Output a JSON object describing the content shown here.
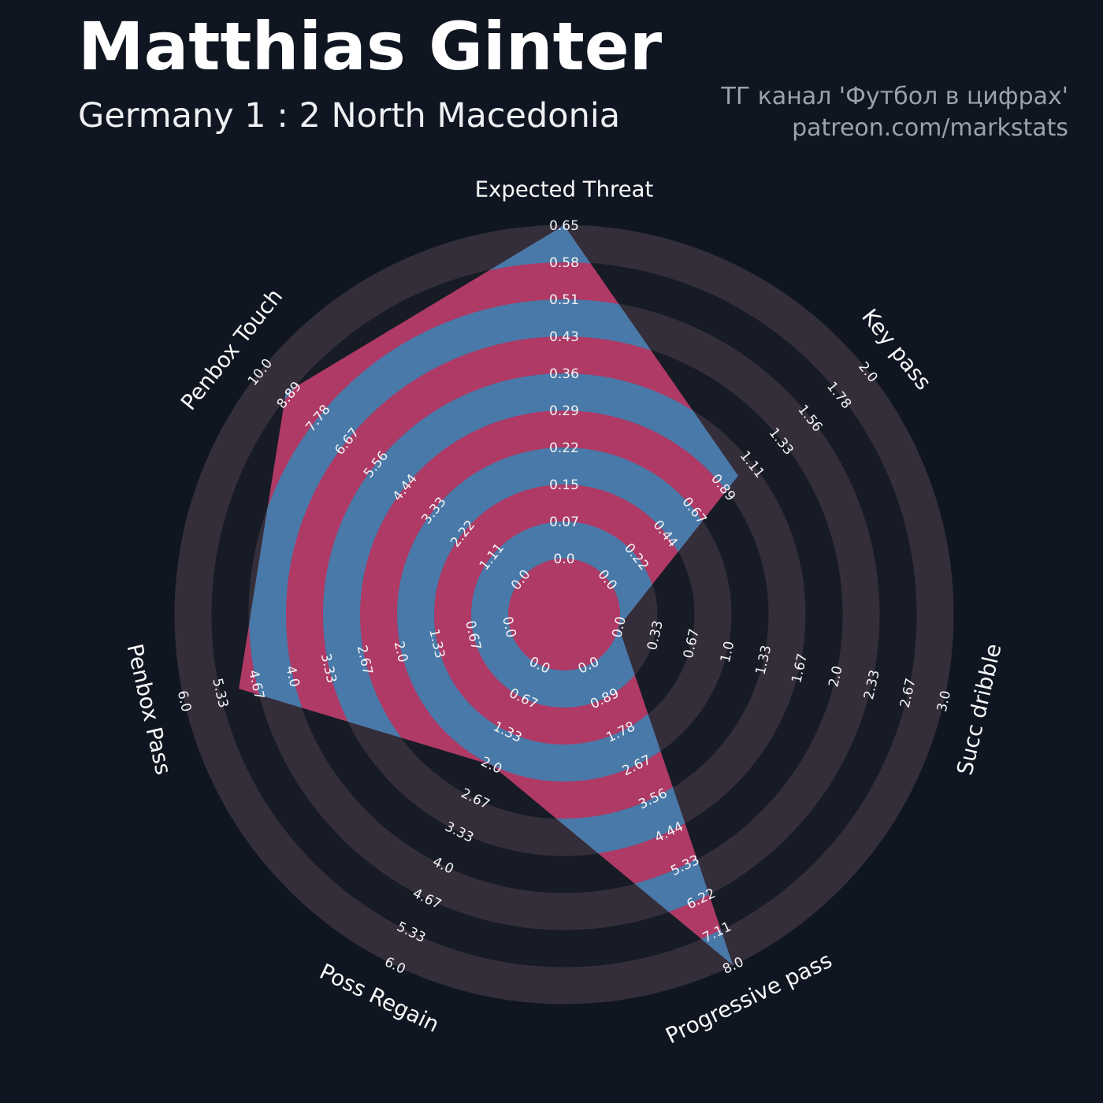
{
  "header": {
    "title": "Matthias Ginter",
    "subtitle": "Germany 1 : 2 North Macedonia",
    "watermark_line1": "ТГ канал 'Футбол в цифрах'",
    "watermark_line2": "patreon.com/markstats"
  },
  "chart_data": {
    "type": "radar",
    "title": "Matthias Ginter",
    "subtitle": "Germany 1 : 2 North Macedonia",
    "legend_position": "none",
    "grid": "concentric-rings",
    "rings_per_axis": 9,
    "direction": "clockwise",
    "start_axis_angle_deg": 90,
    "axes": [
      {
        "label": "Expected Threat",
        "value": 0.65,
        "min": 0.0,
        "max": 0.65,
        "ticks": [
          "0.0",
          "0.07",
          "0.15",
          "0.22",
          "0.29",
          "0.36",
          "0.43",
          "0.51",
          "0.58",
          "0.65"
        ]
      },
      {
        "label": "Key pass",
        "value": 1.0,
        "min": 0.0,
        "max": 2.0,
        "ticks": [
          "0.0",
          "0.22",
          "0.44",
          "0.67",
          "0.89",
          "1.11",
          "1.33",
          "1.56",
          "1.78",
          "2.0"
        ]
      },
      {
        "label": "Succ dribble",
        "value": 0.0,
        "min": 0.0,
        "max": 3.0,
        "ticks": [
          "0.0",
          "0.33",
          "0.67",
          "1.0",
          "1.33",
          "1.67",
          "2.0",
          "2.33",
          "2.67",
          "3.0"
        ]
      },
      {
        "label": "Progressive pass",
        "value": 8.0,
        "min": 0.0,
        "max": 8.0,
        "ticks": [
          "0.0",
          "0.89",
          "1.78",
          "2.67",
          "3.56",
          "4.44",
          "5.33",
          "6.22",
          "7.11",
          "8.0"
        ]
      },
      {
        "label": "Poss Regain",
        "value": 2.0,
        "min": 0.0,
        "max": 6.0,
        "ticks": [
          "0.0",
          "0.67",
          "1.33",
          "2.0",
          "2.67",
          "3.33",
          "4.0",
          "4.67",
          "5.33",
          "6.0"
        ]
      },
      {
        "label": "Penbox Pass",
        "value": 5.0,
        "min": 0.0,
        "max": 6.0,
        "ticks": [
          "0.0",
          "0.67",
          "1.33",
          "2.0",
          "2.67",
          "3.33",
          "4.0",
          "4.67",
          "5.33",
          "6.0"
        ]
      },
      {
        "label": "Penbox Touch",
        "value": 9.0,
        "min": 0.0,
        "max": 10.0,
        "ticks": [
          "0.0",
          "1.11",
          "2.22",
          "3.33",
          "4.44",
          "5.56",
          "6.67",
          "7.78",
          "8.89",
          "10.0"
        ]
      }
    ],
    "colors": {
      "background": "#0f1621",
      "ring_dark": "#161b26",
      "ring_light": "#332e3a",
      "polygon_blue": "#4879a8",
      "polygon_crimson": "#ae3a65",
      "center_hole": "#ae3a65",
      "tick_text": "#f4f4f5",
      "axis_title_text": "#f8f8f9",
      "watermark_text": "#9ba2ac"
    }
  }
}
